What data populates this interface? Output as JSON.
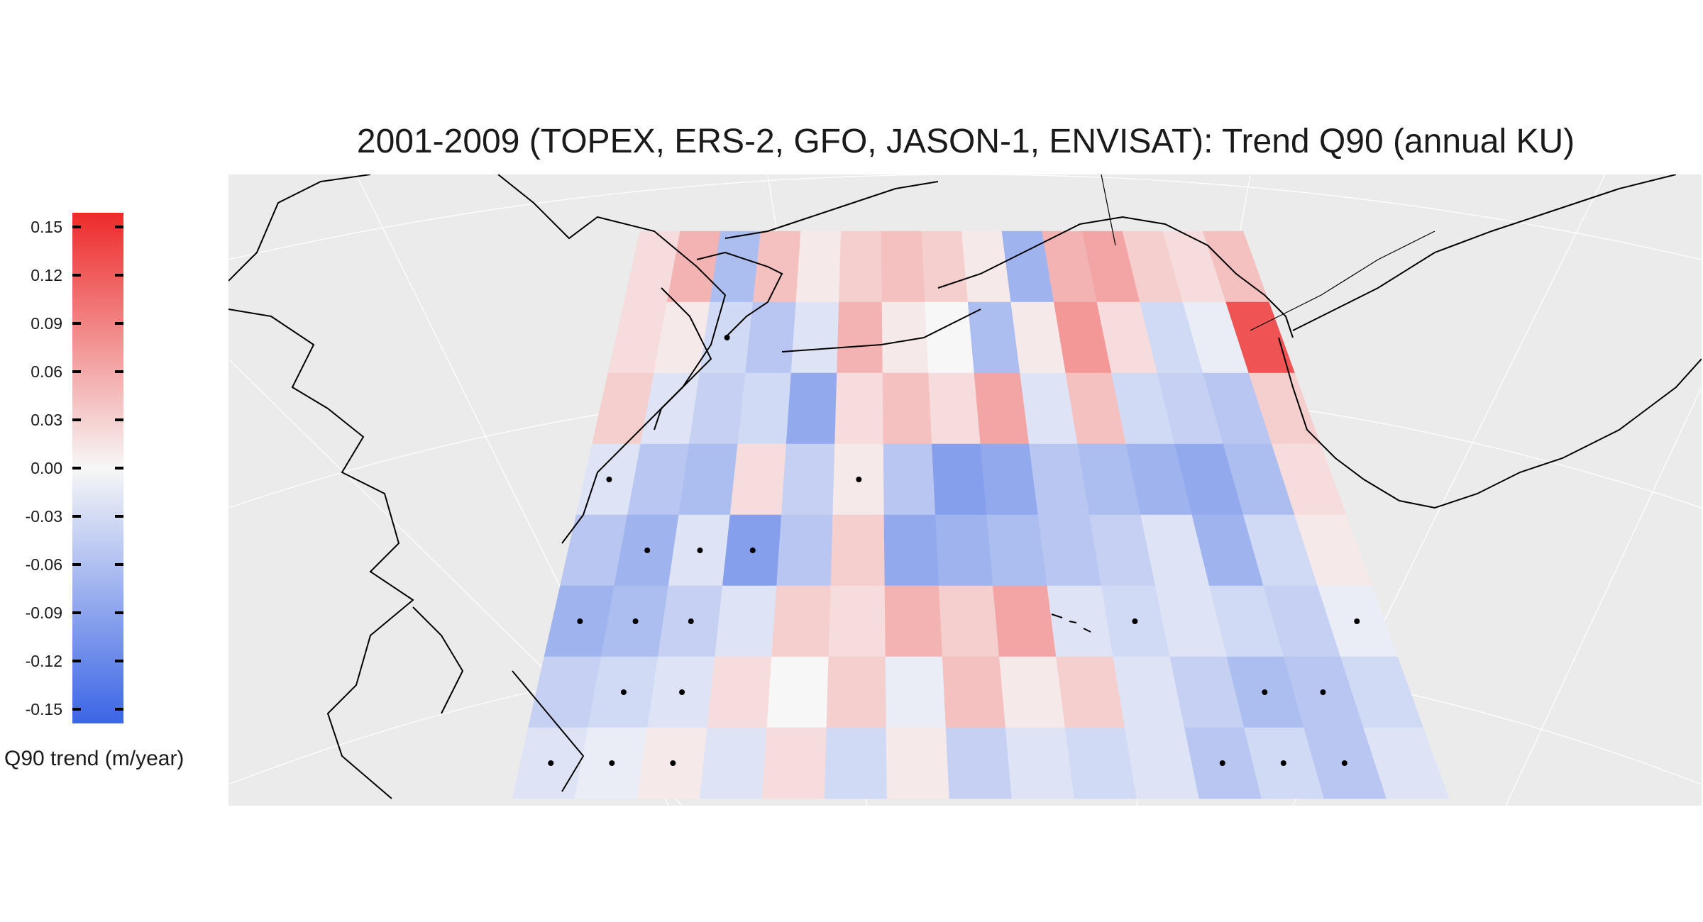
{
  "title": "2001-2009 (TOPEX, ERS-2, GFO, JASON-1, ENVISAT): Trend Q90 (annual KU)",
  "legend": {
    "title": "Q90 trend (m/year)",
    "ticks": [
      "0.15",
      "0.12",
      "0.09",
      "0.06",
      "0.03",
      "0.00",
      "-0.03",
      "-0.06",
      "-0.09",
      "-0.12",
      "-0.15"
    ],
    "range": [
      -0.15,
      0.15
    ],
    "colors": {
      "low": "#3b65e6",
      "mid": "#f7f7f7",
      "high": "#ee2a2a"
    }
  },
  "map": {
    "background": "#ebebeb",
    "projection": "conic (North Pacific)",
    "grid": true,
    "coastline_color": "#000000",
    "dot_meaning_shown": false
  },
  "chart_data": {
    "type": "heatmap",
    "region": "North Pacific",
    "value_unit": "m/year",
    "grid_rows": 8,
    "grid_cols": 15,
    "values": [
      [
        0.02,
        0.05,
        -0.06,
        0.04,
        0.01,
        0.03,
        0.04,
        0.03,
        0.01,
        -0.07,
        0.05,
        0.06,
        0.03,
        0.02,
        0.04
      ],
      [
        0.02,
        0.01,
        -0.03,
        -0.05,
        -0.02,
        0.05,
        0.01,
        0.0,
        -0.06,
        0.01,
        0.07,
        0.02,
        -0.03,
        -0.01,
        0.12
      ],
      [
        0.03,
        -0.02,
        -0.04,
        -0.03,
        -0.08,
        0.02,
        0.04,
        0.02,
        0.06,
        -0.02,
        0.04,
        -0.03,
        -0.04,
        -0.05,
        0.03
      ],
      [
        -0.02,
        -0.05,
        -0.06,
        0.02,
        -0.04,
        0.01,
        -0.05,
        -0.09,
        -0.08,
        -0.05,
        -0.06,
        -0.07,
        -0.08,
        -0.06,
        0.02
      ],
      [
        -0.05,
        -0.07,
        -0.02,
        -0.09,
        -0.05,
        0.03,
        -0.08,
        -0.07,
        -0.06,
        -0.05,
        -0.04,
        -0.02,
        -0.07,
        -0.03,
        0.01
      ],
      [
        -0.07,
        -0.06,
        -0.04,
        -0.02,
        0.03,
        0.02,
        0.05,
        0.03,
        0.06,
        -0.02,
        -0.03,
        -0.02,
        -0.03,
        -0.04,
        -0.01
      ],
      [
        -0.04,
        -0.03,
        -0.02,
        0.02,
        0.0,
        0.03,
        -0.01,
        0.04,
        0.01,
        0.03,
        -0.02,
        -0.04,
        -0.06,
        -0.05,
        -0.03
      ],
      [
        -0.02,
        -0.01,
        0.01,
        -0.02,
        0.02,
        -0.03,
        0.01,
        -0.04,
        -0.02,
        -0.03,
        -0.02,
        -0.05,
        -0.03,
        -0.05,
        -0.02
      ]
    ],
    "marked_cells": [
      [
        1,
        2
      ],
      [
        3,
        0
      ],
      [
        3,
        5
      ],
      [
        4,
        1
      ],
      [
        4,
        2
      ],
      [
        4,
        3
      ],
      [
        5,
        0
      ],
      [
        5,
        1
      ],
      [
        5,
        2
      ],
      [
        5,
        10
      ],
      [
        5,
        14
      ],
      [
        6,
        1
      ],
      [
        6,
        2
      ],
      [
        6,
        12
      ],
      [
        6,
        13
      ],
      [
        7,
        0
      ],
      [
        7,
        1
      ],
      [
        7,
        2
      ],
      [
        7,
        11
      ],
      [
        7,
        12
      ],
      [
        7,
        13
      ]
    ]
  }
}
